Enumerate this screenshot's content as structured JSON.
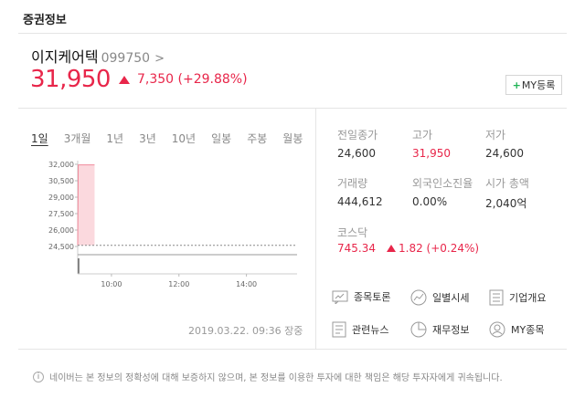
{
  "section": {
    "title": "증권정보"
  },
  "stock": {
    "name": "이지케어텍",
    "code": "099750",
    "price": "31,950",
    "change": "7,350 (+29.88%)",
    "my_button": "MY등록"
  },
  "tabs": [
    "1일",
    "3개월",
    "1년",
    "3년",
    "10년",
    "일봉",
    "주봉",
    "월봉"
  ],
  "chart_data": {
    "type": "area",
    "y_ticks": [
      "32,000",
      "30,500",
      "29,000",
      "27,500",
      "26,000",
      "24,500"
    ],
    "x_ticks": [
      "10:00",
      "12:00",
      "14:00"
    ],
    "ylim": [
      24500,
      32000
    ],
    "prev_close": 24600,
    "series": [
      {
        "x": [
          "09:00",
          "09:01",
          "09:30"
        ],
        "values": [
          24600,
          31950,
          31950
        ]
      }
    ]
  },
  "timestamp": "2019.03.22. 09:36 장중",
  "stats": {
    "prev_close_label": "전일종가",
    "prev_close": "24,600",
    "high_label": "고가",
    "high": "31,950",
    "low_label": "저가",
    "low": "24,600",
    "volume_label": "거래량",
    "volume": "444,612",
    "foreign_label": "외국인소진율",
    "foreign": "0.00%",
    "mcap_label": "시가 총액",
    "mcap": "2,040억"
  },
  "kosdaq": {
    "label": "코스닥",
    "value": "745.34",
    "change": "1.82 (+0.24%)"
  },
  "links": {
    "discussion": "종목토론",
    "daily": "일별시세",
    "overview": "기업개요",
    "news": "관련뉴스",
    "financial": "재무정보",
    "my_stock": "MY종목"
  },
  "footer": "네이버는 본 정보의 정확성에 대해 보증하지 않으며, 본 정보를 이용한 투자에 대한 책임은 해당 투자자에게 귀속됩니다.",
  "colors": {
    "up": "#e8264a",
    "accent_green": "#1fb355"
  }
}
